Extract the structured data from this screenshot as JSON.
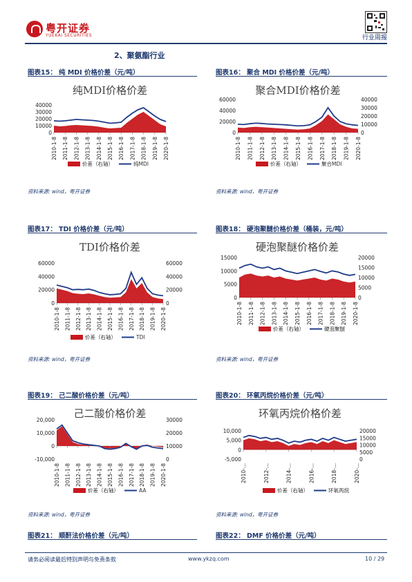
{
  "header": {
    "brand_cn": "粤开证券",
    "brand_en": "YUEKAI SECURITIES",
    "report_type": "行业周报"
  },
  "section": {
    "title": "2、聚氨酯行业"
  },
  "figures": [
    {
      "label": "图表15： 纯 MDI 价格价差（元/吨）",
      "chart_data": {
        "type": "area-line",
        "title": "纯MDI价格价差",
        "x_ticks": [
          "2010-1-8",
          "2011-1-8",
          "2012-1-8",
          "2013-1-8",
          "2014-1-8",
          "2015-1-8",
          "2016-1-8",
          "2017-1-8",
          "2018-1-8",
          "2019-1-8",
          "2020-1-8"
        ],
        "y_left_ticks": [
          "40000",
          "30000",
          "20000",
          "10000",
          "0"
        ],
        "y_left_range": [
          0,
          40000
        ],
        "y_right_ticks": [],
        "y_right_range": [
          0,
          40000
        ],
        "series": [
          {
            "name": "价差（右轴）",
            "axis": "right",
            "kind": "area",
            "color": "#c8181e",
            "values": [
              10000,
              9000,
              9500,
              10500,
              11000,
              10500,
              10000,
              9500,
              8500,
              7000,
              6000,
              6500,
              7000,
              14000,
              20000,
              26000,
              30000,
              24000,
              18000,
              12000,
              9000
            ]
          },
          {
            "name": "纯MDI",
            "axis": "left",
            "kind": "line",
            "color": "#1f3a8a",
            "values": [
              17000,
              16500,
              17000,
              18000,
              19000,
              18500,
              18000,
              17500,
              16500,
              15000,
              13500,
              14000,
              15000,
              22000,
              28000,
              33000,
              36000,
              30000,
              24000,
              19000,
              16000
            ]
          }
        ]
      },
      "source": "资料来源: wind，粤开证券"
    },
    {
      "label": "图表16： 聚合 MDI 价格价差（元/吨）",
      "chart_data": {
        "type": "area-line",
        "title": "聚合MDI价格价差",
        "x_ticks": [
          "2010-1-8",
          "2011-1-8",
          "2012-1-8",
          "2013-1-8",
          "2014-1-8",
          "2015-1-8",
          "2016-1-8",
          "2017-1-8",
          "2018-1-8",
          "2019-1-8",
          "2020-1-8"
        ],
        "y_left_ticks": [
          "60000",
          "40000",
          "20000",
          "0"
        ],
        "y_left_range": [
          0,
          60000
        ],
        "y_right_ticks": [
          "40000",
          "30000",
          "20000",
          "10000",
          "0"
        ],
        "y_right_range": [
          0,
          40000
        ],
        "series": [
          {
            "name": "价差（右轴）",
            "axis": "right",
            "kind": "area",
            "color": "#c8181e",
            "values": [
              6000,
              5500,
              6500,
              7000,
              6500,
              6000,
              5500,
              5000,
              4500,
              4000,
              3500,
              4000,
              5000,
              9000,
              14000,
              22000,
              16000,
              10000,
              7000,
              5000,
              4500
            ]
          },
          {
            "name": "聚合MDI",
            "axis": "left",
            "kind": "line",
            "color": "#1f3a8a",
            "values": [
              15000,
              14500,
              16000,
              17000,
              16500,
              15500,
              15000,
              14500,
              14000,
              13000,
              12000,
              12500,
              14000,
              20000,
              28000,
              45000,
              30000,
              20000,
              16000,
              14000,
              13000
            ]
          }
        ]
      },
      "source": "资料来源: wind，粤开证券"
    },
    {
      "label": "图表17： TDI 价格价差（元/吨）",
      "chart_data": {
        "type": "area-line",
        "title": "TDI价格价差",
        "x_ticks": [
          "2010-1-8",
          "2011-1-8",
          "2012-1-8",
          "2013-1-8",
          "2014-1-8",
          "2015-1-8",
          "2016-1-8",
          "2017-1-8",
          "2018-1-8",
          "2019-1-8",
          "2020-1-8"
        ],
        "y_left_ticks": [
          "60000",
          "40000",
          "20000",
          "0"
        ],
        "y_left_range": [
          0,
          60000
        ],
        "y_right_ticks": [
          "60000",
          "40000",
          "20000",
          "0"
        ],
        "y_right_range": [
          0,
          60000
        ],
        "series": [
          {
            "name": "价差（右轴）",
            "axis": "right",
            "kind": "area",
            "color": "#c8181e",
            "values": [
              22000,
              20000,
              18000,
              15000,
              14000,
              13500,
              14500,
              13000,
              11000,
              9000,
              8000,
              8500,
              9000,
              16000,
              36000,
              22000,
              30000,
              16000,
              9000,
              7000,
              6000
            ]
          },
          {
            "name": "TDI",
            "axis": "left",
            "kind": "line",
            "color": "#1f3a8a",
            "values": [
              27000,
              25000,
              23000,
              20000,
              20500,
              20000,
              21000,
              19000,
              16000,
              14000,
              12500,
              13000,
              14000,
              22000,
              46000,
              28000,
              38000,
              22000,
              14000,
              12000,
              11000
            ]
          }
        ]
      },
      "source": "资料来源: wind，粤开证券"
    },
    {
      "label": "图表18： 硬泡聚醚价格价差（桶装，元/吨）",
      "chart_data": {
        "type": "area-line",
        "title": "硬泡聚醚价格价差",
        "x_ticks": [
          "2010-1-8",
          "2011-1-8",
          "2012-1-8",
          "2013-1-8",
          "2014-1-8",
          "2015-1-8",
          "2016-1-8",
          "2017-1-8",
          "2018-1-8",
          "2019-1-8",
          "2020-1-8"
        ],
        "y_left_ticks": [
          "15000",
          "10000",
          "5000",
          "0"
        ],
        "y_left_range": [
          0,
          15000
        ],
        "y_right_ticks": [
          "20000",
          "15000",
          "10000",
          "5000",
          "0"
        ],
        "y_right_range": [
          0,
          20000
        ],
        "series": [
          {
            "name": "价差（右轴）",
            "axis": "right",
            "kind": "area",
            "color": "#c8181e",
            "values": [
              10000,
              11500,
              12000,
              11000,
              10500,
              11000,
              10000,
              10500,
              9500,
              9000,
              8500,
              9000,
              9500,
              10000,
              9000,
              8500,
              9500,
              9000,
              8000,
              7500,
              8000
            ]
          },
          {
            "name": "硬泡聚醚",
            "axis": "left",
            "kind": "line",
            "color": "#1f3a8a",
            "values": [
              11000,
              12000,
              12500,
              11500,
              11000,
              11500,
              10500,
              11000,
              10000,
              9500,
              9000,
              9500,
              10000,
              10500,
              9800,
              9200,
              10000,
              9600,
              8800,
              8300,
              8700
            ]
          }
        ]
      },
      "source": "资料来源: wind，粤开证券"
    },
    {
      "label": "图表19： 己二酸价格价差（元/吨）",
      "chart_data": {
        "type": "area-line",
        "title": "己二酸价格价差",
        "x_ticks": [
          "2010-1-8",
          "2011-1-8",
          "2012-1-8",
          "2013-1-8",
          "2014-1-8",
          "2015-1-8",
          "2016-1-8",
          "2017-1-8",
          "2018-1-8",
          "2019-1-8",
          "2020-1-8"
        ],
        "y_left_ticks": [
          "20,000",
          "10,000",
          "0",
          "-10,000"
        ],
        "y_left_range": [
          -10000,
          20000
        ],
        "y_right_ticks": [
          "30000",
          "20000",
          "10000",
          "0"
        ],
        "y_right_range": [
          0,
          30000
        ],
        "series": [
          {
            "name": "价差（右轴）",
            "axis": "left",
            "kind": "area",
            "color": "#c8181e",
            "values": [
              12000,
              15000,
              9000,
              3000,
              1500,
              1000,
              1000,
              500,
              0,
              -1500,
              -2000,
              -1500,
              -500,
              1500,
              -1000,
              -2000,
              500,
              1000,
              0,
              -500,
              -1000
            ]
          },
          {
            "name": "AA",
            "axis": "left",
            "kind": "line",
            "color": "#1f3a8a",
            "values": [
              13000,
              16000,
              10000,
              4000,
              2500,
              1500,
              1000,
              500,
              0,
              -2000,
              -2500,
              -2000,
              -1000,
              2000,
              -500,
              -2500,
              0,
              500,
              -1000,
              -1500,
              -2000
            ]
          }
        ]
      },
      "source": "资料来源: wind，粤开证券"
    },
    {
      "label": "图表20： 环氧丙烷价格价差（元/吨）",
      "chart_data": {
        "type": "area-line",
        "title": "环氧丙烷价格价差",
        "x_ticks": [
          "2010-...",
          "2012-...",
          "2014-...",
          "2016-...",
          "2018-...",
          "2020-..."
        ],
        "y_left_ticks": [
          "10,000",
          "5,000",
          "0",
          "-5,000"
        ],
        "y_left_range": [
          -5000,
          10000
        ],
        "y_right_ticks": [
          "20000",
          "15000",
          "10000",
          "5000",
          "0"
        ],
        "y_right_range": [
          0,
          20000
        ],
        "series": [
          {
            "name": "价差（右轴）",
            "axis": "left",
            "kind": "area",
            "color": "#c8181e",
            "values": [
              5000,
              6000,
              5500,
              4500,
              5000,
              4000,
              4500,
              3500,
              2000,
              3000,
              2500,
              3500,
              4000,
              3000,
              4500,
              3500,
              5000,
              4000,
              3000,
              3500,
              4000
            ]
          },
          {
            "name": "环氧丙烷",
            "axis": "left",
            "kind": "line",
            "color": "#1f3a8a",
            "values": [
              6500,
              7500,
              7000,
              6000,
              6500,
              5500,
              6000,
              5000,
              3500,
              4500,
              4000,
              5000,
              5500,
              4500,
              6000,
              5000,
              6500,
              5500,
              4500,
              5000,
              5500
            ]
          }
        ]
      },
      "source": "资料来源: wind，粤开证券"
    }
  ],
  "next_figures": [
    {
      "label": "图表21： 顺酐法价格价差（元/吨）"
    },
    {
      "label": "图表22： DMF 价格价差（元/吨）"
    }
  ],
  "footer": {
    "disclaimer": "请务必阅读最后特别声明与免责条款",
    "website": "www.ykzq.com",
    "page": "10 / 29"
  }
}
